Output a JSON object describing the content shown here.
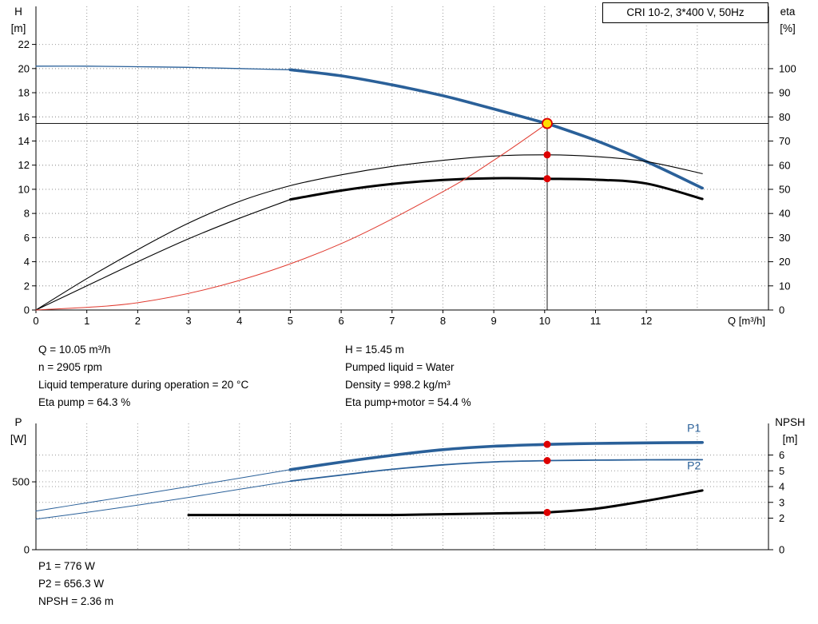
{
  "colors": {
    "blue": "#2a6099",
    "black": "#000000",
    "red": "#e03a2f",
    "grid": "#999999",
    "marker_yellow": "#ffdd00",
    "marker_ring": "#dd0000",
    "marker_red": "#dd0000"
  },
  "legend": {
    "label": "CRI 10-2, 3*400 V, 50Hz"
  },
  "axis_titles": {
    "top_left_line1": "H",
    "top_left_line2": "[m]",
    "top_right_line1": "eta",
    "top_right_line2": "[%]",
    "x_label": "Q [m³/h]",
    "bottom_left_line1": "P",
    "bottom_left_line2": "[W]",
    "bottom_right_line1": "NPSH",
    "bottom_right_line2": "[m]"
  },
  "info_top": {
    "left": [
      "Q = 10.05 m³/h",
      "n = 2905 rpm",
      "Liquid temperature during operation = 20 °C",
      "Eta pump = 64.3 %"
    ],
    "right": [
      "H = 15.45 m",
      "Pumped liquid = Water",
      "Density = 998.2 kg/m³",
      "Eta pump+motor = 54.4 %"
    ]
  },
  "info_bottom": [
    "P1 = 776 W",
    "P2 = 656.3 W",
    "NPSH = 2.36 m"
  ],
  "chart_data": [
    {
      "type": "line",
      "title": "CRI 10-2, 3*400 V, 50Hz",
      "xlabel": "Q [m³/h]",
      "ylabel_left": "H [m]",
      "ylabel_right": "eta [%]",
      "xlim": [
        0,
        14.4
      ],
      "ylim_left": [
        0,
        25.15
      ],
      "ylim_right": [
        0,
        125.8
      ],
      "xticks": [
        0,
        1,
        2,
        3,
        4,
        5,
        6,
        7,
        8,
        9,
        10,
        11,
        12
      ],
      "xgrid": [
        1,
        2,
        3,
        4,
        5,
        6,
        7,
        8,
        9,
        10,
        11,
        12,
        13
      ],
      "yticks_left": [
        0,
        2,
        4,
        6,
        8,
        10,
        12,
        14,
        16,
        18,
        20,
        22
      ],
      "yticks_right": [
        0,
        10,
        20,
        30,
        40,
        50,
        60,
        70,
        80,
        90,
        100
      ],
      "grid": true,
      "legend_position": "top-right",
      "duty_lines": {
        "q": 10.05,
        "h": 15.45
      },
      "series": [
        {
          "name": "pump-head-thin",
          "axis": "left",
          "color": "blue",
          "width": 1.3,
          "x": [
            0,
            1,
            2,
            3,
            4,
            5
          ],
          "y": [
            20.2,
            20.2,
            20.15,
            20.1,
            20.0,
            19.9
          ]
        },
        {
          "name": "pump-head",
          "axis": "left",
          "color": "blue",
          "width": 3.6,
          "x": [
            5,
            6,
            7,
            8,
            9,
            10,
            10.05,
            11,
            12,
            13.1
          ],
          "y": [
            19.9,
            19.4,
            18.65,
            17.75,
            16.65,
            15.5,
            15.45,
            14.05,
            12.3,
            10.1
          ]
        },
        {
          "name": "eta-pump",
          "axis": "right",
          "color": "black",
          "width": 1.1,
          "x": [
            0,
            1,
            2,
            3,
            4,
            5,
            6,
            7,
            8,
            9,
            10.05,
            11,
            12,
            13.1
          ],
          "y": [
            0,
            13,
            25,
            36,
            45,
            51.5,
            56,
            59.5,
            62,
            63.8,
            64.3,
            63.6,
            61.5,
            56.5
          ]
        },
        {
          "name": "eta-pump-motor-thin",
          "axis": "right",
          "color": "black",
          "width": 1.1,
          "x": [
            0,
            1,
            2,
            3,
            4,
            5
          ],
          "y": [
            0,
            10,
            20,
            29.5,
            38,
            45.8
          ]
        },
        {
          "name": "eta-pump-motor",
          "axis": "right",
          "color": "black",
          "width": 3,
          "x": [
            5,
            6,
            7,
            8,
            9,
            10.05,
            11,
            12,
            13.1
          ],
          "y": [
            45.8,
            49.5,
            52.2,
            53.9,
            54.6,
            54.4,
            54.0,
            52.4,
            46.0
          ]
        },
        {
          "name": "system-curve",
          "axis": "left",
          "color": "red",
          "width": 1,
          "x": [
            0,
            2,
            4,
            6,
            8,
            9,
            10,
            10.05
          ],
          "y": [
            0,
            0.6,
            2.45,
            5.5,
            9.8,
            12.4,
            15.3,
            15.45
          ]
        }
      ],
      "markers": [
        {
          "x": 10.05,
          "y": 15.45,
          "axis": "left",
          "type": "duty"
        },
        {
          "x": 10.05,
          "y": 64.3,
          "axis": "right",
          "type": "dot"
        },
        {
          "x": 10.05,
          "y": 54.4,
          "axis": "right",
          "type": "dot"
        }
      ]
    },
    {
      "type": "line",
      "title": "Power and NPSH",
      "xlabel": "",
      "ylabel_left": "P [W]",
      "ylabel_right": "NPSH [m]",
      "xlim": [
        0,
        14.4
      ],
      "ylim_left": [
        0,
        930
      ],
      "ylim_right": [
        0,
        8
      ],
      "xticks": [],
      "xgrid": [
        1,
        2,
        3,
        4,
        5,
        6,
        7,
        8,
        9,
        10,
        11,
        12,
        13
      ],
      "yticks_left": [
        0,
        500
      ],
      "yticks_right": [
        0,
        2,
        3,
        4,
        5,
        6
      ],
      "grid": true,
      "series": [
        {
          "name": "p1-thin",
          "axis": "left",
          "color": "blue",
          "width": 1,
          "x": [
            0,
            1,
            2,
            3,
            4,
            5
          ],
          "y": [
            285,
            345,
            405,
            465,
            527,
            590
          ]
        },
        {
          "name": "p1",
          "axis": "left",
          "color": "blue",
          "width": 3.6,
          "x": [
            5,
            6,
            7,
            8,
            9,
            10,
            10.05,
            11,
            12,
            13.1
          ],
          "y": [
            590,
            645,
            695,
            737,
            762,
            775,
            776,
            783,
            787,
            790
          ]
        },
        {
          "name": "p2-thin",
          "axis": "left",
          "color": "blue",
          "width": 1,
          "x": [
            0,
            1,
            2,
            3,
            4,
            5
          ],
          "y": [
            225,
            275,
            328,
            385,
            445,
            505
          ]
        },
        {
          "name": "p2",
          "axis": "left",
          "color": "blue",
          "width": 1.8,
          "x": [
            5,
            6,
            7,
            8,
            9,
            10,
            10.05,
            11,
            12,
            13.1
          ],
          "y": [
            505,
            550,
            592,
            625,
            647,
            656,
            656.3,
            660,
            662,
            663
          ]
        },
        {
          "name": "npsh",
          "axis": "right",
          "color": "black",
          "width": 3,
          "x": [
            3,
            4,
            5,
            6,
            7,
            8,
            9,
            10,
            10.05,
            11,
            12,
            13.1
          ],
          "y": [
            2.2,
            2.2,
            2.2,
            2.2,
            2.2,
            2.25,
            2.3,
            2.35,
            2.36,
            2.6,
            3.1,
            3.75
          ]
        }
      ],
      "series_labels": [
        {
          "text": "P1",
          "x": 12.8,
          "y": 868,
          "axis": "left",
          "color": "blue"
        },
        {
          "text": "P2",
          "x": 12.8,
          "y": 592,
          "axis": "left",
          "color": "blue"
        }
      ],
      "markers": [
        {
          "x": 10.05,
          "y": 776,
          "axis": "left",
          "type": "dot"
        },
        {
          "x": 10.05,
          "y": 656.3,
          "axis": "left",
          "type": "dot"
        },
        {
          "x": 10.05,
          "y": 2.36,
          "axis": "right",
          "type": "dot"
        }
      ]
    }
  ]
}
